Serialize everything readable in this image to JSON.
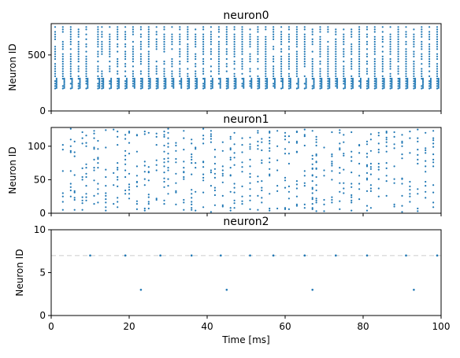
{
  "chart_data": [
    {
      "type": "scatter",
      "title": "neuron0",
      "xlabel": "",
      "ylabel": "Neuron ID",
      "xlim": [
        0,
        100
      ],
      "ylim": [
        0,
        780
      ],
      "yticks": [
        "0",
        "500"
      ],
      "ytick_values": [
        0,
        500
      ],
      "x_tick_labels_visible": false,
      "marker_color": "#1f77b4",
      "raster": {
        "spike_times": [
          1,
          3,
          5,
          7,
          9,
          12,
          13,
          15,
          17,
          19,
          21,
          23,
          25,
          27,
          29,
          31,
          33,
          35,
          37,
          39,
          41,
          43,
          45,
          47,
          49,
          51,
          53,
          55,
          57,
          59,
          61,
          63,
          65,
          67,
          69,
          71,
          73,
          75,
          77,
          79,
          81,
          83,
          85,
          87,
          89,
          91,
          93,
          95,
          97,
          99
        ],
        "id_min": 200,
        "id_max": 750,
        "id_step": 22
      }
    },
    {
      "type": "scatter",
      "title": "neuron1",
      "xlabel": "",
      "ylabel": "Neuron ID",
      "xlim": [
        0,
        100
      ],
      "ylim": [
        0,
        128
      ],
      "yticks": [
        "0",
        "50",
        "100"
      ],
      "ytick_values": [
        0,
        50,
        100
      ],
      "x_tick_labels_visible": false,
      "marker_color": "#1f77b4",
      "raster": {
        "spike_times": [
          3,
          5,
          6,
          8,
          9,
          11,
          12,
          14,
          16,
          17,
          19,
          20,
          22,
          24,
          25,
          27,
          29,
          30,
          32,
          34,
          36,
          37,
          39,
          41,
          42,
          44,
          46,
          47,
          49,
          51,
          53,
          54,
          56,
          58,
          60,
          61,
          63,
          65,
          67,
          68,
          70,
          72,
          74,
          75,
          77,
          79,
          81,
          82,
          84,
          86,
          88,
          90,
          92,
          94,
          96,
          98
        ],
        "id_min": 2,
        "id_max": 126,
        "id_step": 5
      }
    },
    {
      "type": "scatter",
      "title": "neuron2",
      "xlabel": "Time [ms]",
      "ylabel": "Neuron ID",
      "xlim": [
        0,
        100
      ],
      "ylim": [
        0,
        10
      ],
      "yticks": [
        "0",
        "5",
        "10"
      ],
      "ytick_values": [
        0,
        5,
        10
      ],
      "xticks": [
        "0",
        "20",
        "40",
        "60",
        "80",
        "100"
      ],
      "xtick_values": [
        0,
        20,
        40,
        60,
        80,
        100
      ],
      "x_tick_labels_visible": true,
      "marker_color": "#1f77b4",
      "reference_line": {
        "y": 7,
        "style": "dashed",
        "color": "#dddddd"
      },
      "points": [
        {
          "x": 10,
          "y": 7
        },
        {
          "x": 19,
          "y": 7
        },
        {
          "x": 28,
          "y": 7
        },
        {
          "x": 36,
          "y": 7
        },
        {
          "x": 43.5,
          "y": 7
        },
        {
          "x": 51,
          "y": 7
        },
        {
          "x": 57,
          "y": 7
        },
        {
          "x": 65,
          "y": 7
        },
        {
          "x": 73,
          "y": 7
        },
        {
          "x": 81,
          "y": 7
        },
        {
          "x": 91,
          "y": 7
        },
        {
          "x": 99,
          "y": 7
        },
        {
          "x": 23,
          "y": 3
        },
        {
          "x": 45,
          "y": 3
        },
        {
          "x": 67,
          "y": 3
        },
        {
          "x": 93,
          "y": 3
        }
      ]
    }
  ]
}
